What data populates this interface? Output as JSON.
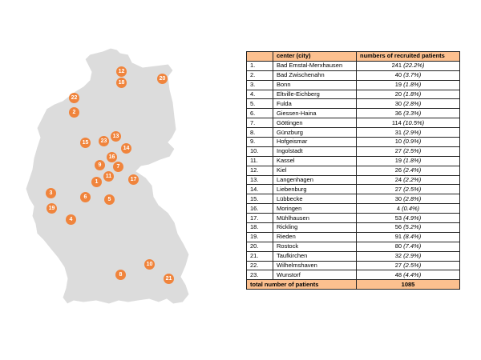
{
  "table": {
    "headers": [
      "",
      "center (city)",
      "numbers of recruited patients"
    ],
    "rows": [
      {
        "num": "1.",
        "city": "Bad Emstal-Merxhausen",
        "count": "241",
        "pct": "(22.2%)"
      },
      {
        "num": "2.",
        "city": "Bad Zwischenahn",
        "count": "40",
        "pct": "(3.7%)"
      },
      {
        "num": "3.",
        "city": "Bonn",
        "count": "19",
        "pct": "(1.8%)"
      },
      {
        "num": "4.",
        "city": "Eltville-Eichberg",
        "count": "20",
        "pct": "(1.8%)"
      },
      {
        "num": "5.",
        "city": "Fulda",
        "count": "30",
        "pct": "(2.8%)"
      },
      {
        "num": "6.",
        "city": "Giessen-Haina",
        "count": "36",
        "pct": "(3.3%)"
      },
      {
        "num": "7.",
        "city": "Göttingen",
        "count": "114",
        "pct": "(10.5%)"
      },
      {
        "num": "8.",
        "city": "Günzburg",
        "count": "31",
        "pct": "(2.9%)"
      },
      {
        "num": "9.",
        "city": "Hofgeismar",
        "count": "10",
        "pct": "(0.9%)"
      },
      {
        "num": "10.",
        "city": "Ingolstadt",
        "count": "27",
        "pct": "(2.5%)"
      },
      {
        "num": "11.",
        "city": "Kassel",
        "count": "19",
        "pct": "(1.8%)"
      },
      {
        "num": "12.",
        "city": "Kiel",
        "count": "26",
        "pct": "(2.4%)"
      },
      {
        "num": "13.",
        "city": "Langenhagen",
        "count": "24",
        "pct": "(2.2%)"
      },
      {
        "num": "14.",
        "city": "Liebenburg",
        "count": "27",
        "pct": "(2.5%)"
      },
      {
        "num": "15.",
        "city": "Lübbecke",
        "count": "30",
        "pct": "(2.8%)"
      },
      {
        "num": "16.",
        "city": "Moringen",
        "count": "4",
        "pct": "(0.4%)"
      },
      {
        "num": "17.",
        "city": "Mühlhausen",
        "count": "53",
        "pct": "(4.9%)"
      },
      {
        "num": "18.",
        "city": "Rickling",
        "count": "56",
        "pct": "(5.2%)"
      },
      {
        "num": "19.",
        "city": "Rieden",
        "count": "91",
        "pct": "(8.4%)"
      },
      {
        "num": "20.",
        "city": "Rostock",
        "count": "80",
        "pct": "(7.4%)"
      },
      {
        "num": "21.",
        "city": "Taufkirchen",
        "count": "32",
        "pct": "(2.9%)"
      },
      {
        "num": "22.",
        "city": "Wilhelmshaven",
        "count": "27",
        "pct": "(2.5%)"
      },
      {
        "num": "23.",
        "city": "Wunstorf",
        "count": "48",
        "pct": "(4.4%)"
      }
    ],
    "total_label": "total number of patients",
    "total_value": "1085"
  },
  "map": {
    "fill_color": "#dcdcdc",
    "marker_color": "#f0843c",
    "markers": [
      "1",
      "2",
      "3",
      "4",
      "5",
      "6",
      "7",
      "8",
      "9",
      "10",
      "11",
      "12",
      "13",
      "14",
      "15",
      "16",
      "17",
      "18",
      "19",
      "20",
      "21",
      "22",
      "23"
    ]
  }
}
